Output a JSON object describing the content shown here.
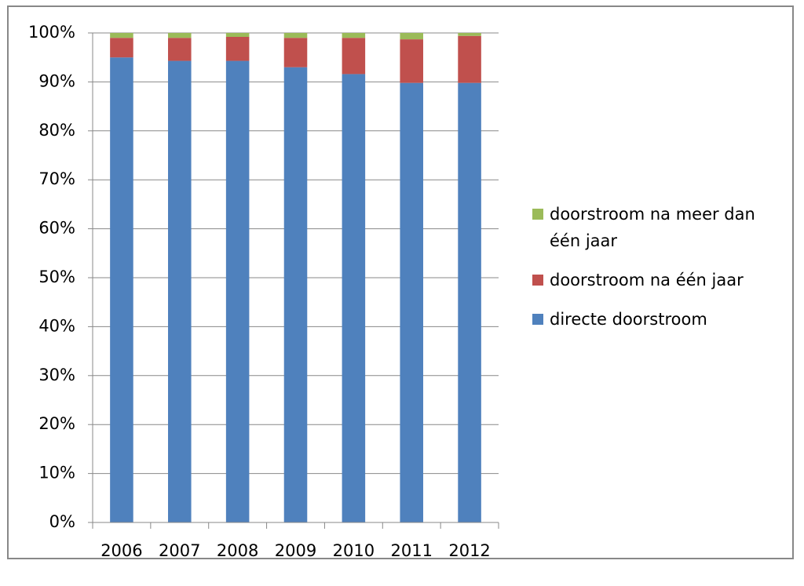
{
  "chart_data": {
    "type": "stacked_bar",
    "categories": [
      "2006",
      "2007",
      "2008",
      "2009",
      "2010",
      "2011",
      "2012"
    ],
    "series": [
      {
        "name": "directe doorstroom",
        "color": "#4f81bd",
        "values": [
          95.0,
          94.3,
          94.3,
          93.0,
          91.6,
          89.8,
          89.8
        ]
      },
      {
        "name": "doorstroom na één jaar",
        "color": "#c0504d",
        "values": [
          4.0,
          4.7,
          4.9,
          6.0,
          7.4,
          8.9,
          9.6
        ]
      },
      {
        "name": "doorstroom na meer dan één jaar",
        "color": "#9bbb59",
        "values": [
          1.0,
          1.0,
          0.8,
          1.0,
          1.0,
          1.3,
          0.6
        ]
      }
    ],
    "ylim": [
      0,
      100
    ],
    "yticks": [
      {
        "value": 0,
        "label": "0%"
      },
      {
        "value": 10,
        "label": "10%"
      },
      {
        "value": 20,
        "label": "20%"
      },
      {
        "value": 30,
        "label": "30%"
      },
      {
        "value": 40,
        "label": "40%"
      },
      {
        "value": 50,
        "label": "50%"
      },
      {
        "value": 60,
        "label": "60%"
      },
      {
        "value": 70,
        "label": "70%"
      },
      {
        "value": 80,
        "label": "80%"
      },
      {
        "value": 90,
        "label": "90%"
      },
      {
        "value": 100,
        "label": "100%"
      }
    ],
    "grid": true,
    "legend": "right"
  }
}
